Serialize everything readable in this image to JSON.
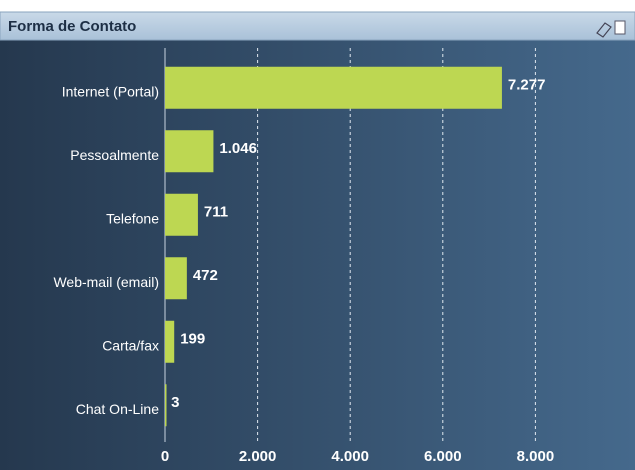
{
  "chart_data": {
    "type": "bar",
    "orientation": "horizontal",
    "title": "Forma de Contato",
    "categories": [
      "Internet (Portal)",
      "Pessoalmente",
      "Telefone",
      "Web-mail (email)",
      "Carta/fax",
      "Chat On-Line"
    ],
    "values": [
      7277,
      1046,
      711,
      472,
      199,
      3
    ],
    "value_labels": [
      "7.277",
      "1.046",
      "711",
      "472",
      "199",
      "3"
    ],
    "color": "#bdd752",
    "xlim": [
      0,
      10000
    ],
    "xticks": [
      0,
      {
        "value": 2000,
        "label": "2.000"
      },
      {
        "value": 4000,
        "label": "4.000"
      },
      {
        "value": 6000,
        "label": "6.000"
      },
      {
        "value": 8000,
        "label": "8.000"
      }
    ],
    "grid": true
  }
}
